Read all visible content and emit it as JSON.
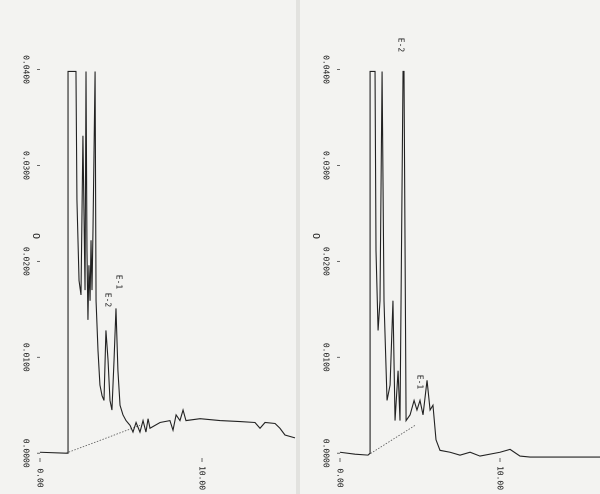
{
  "chart_data": [
    {
      "type": "line",
      "ylabel": "O",
      "annotations": [
        "E-2",
        "E-1"
      ],
      "color": "#222222",
      "xlim": [
        0,
        15.74
      ],
      "xticks": [
        {
          "value": 0,
          "label": "0.00"
        },
        {
          "value": 10,
          "label": "10.00"
        }
      ],
      "ylim": [
        -0.0005,
        0.046
      ],
      "yticks": [
        {
          "value": 0,
          "label": "0.0000"
        },
        {
          "value": 0.01,
          "label": "0.0100"
        },
        {
          "value": 0.02,
          "label": "0.0200"
        },
        {
          "value": 0.03,
          "label": "0.0300"
        },
        {
          "value": 0.04,
          "label": "0.0400"
        }
      ],
      "x": [
        0,
        1.6,
        1.73,
        1.73,
        2.22,
        2.28,
        2.41,
        2.53,
        2.65,
        2.78,
        2.84,
        2.9,
        2.96,
        3.02,
        3.09,
        3.15,
        3.21,
        3.27,
        3.4,
        3.46,
        3.58,
        3.7,
        3.83,
        3.95,
        4.07,
        4.2,
        4.32,
        4.44,
        4.57,
        4.69,
        4.81,
        4.94,
        5.12,
        5.31,
        5.56,
        5.74,
        5.93,
        6.17,
        6.36,
        6.54,
        6.67,
        6.79,
        7.41,
        8.02,
        8.21,
        8.4,
        8.64,
        8.83,
        9.01,
        9.88,
        11.11,
        12.35,
        13.27,
        13.58,
        13.89,
        14.51,
        14.81,
        15.12,
        15.74
      ],
      "values": [
        0.0001,
        0,
        0,
        0.0398,
        0.0398,
        0.0264,
        0.018,
        0.0165,
        0.0331,
        0.017,
        0.0398,
        0.0211,
        0.0139,
        0.0196,
        0.0159,
        0.0222,
        0.017,
        0.0232,
        0.0398,
        0.0159,
        0.0107,
        0.0071,
        0.006,
        0.0055,
        0.0128,
        0.0097,
        0.0055,
        0.0045,
        0.0097,
        0.0151,
        0.0086,
        0.005,
        0.004,
        0.0034,
        0.0029,
        0.0022,
        0.0032,
        0.0022,
        0.0034,
        0.0022,
        0.0036,
        0.0026,
        0.0032,
        0.0034,
        0.0024,
        0.004,
        0.0034,
        0.0045,
        0.0034,
        0.0036,
        0.0034,
        0.0033,
        0.0032,
        0.0026,
        0.0032,
        0.0031,
        0.0026,
        0.0019,
        0.0016
      ],
      "baseline": {
        "x": [
          1.6,
          6.17
        ],
        "values": [
          0,
          0.0029
        ]
      }
    },
    {
      "type": "line",
      "ylabel": "O",
      "annotations": [
        "E-2",
        "E-1"
      ],
      "color": "#222222",
      "xlim": [
        0,
        16.25
      ],
      "xticks": [
        {
          "value": 0,
          "label": "0.00"
        },
        {
          "value": 10,
          "label": "10.00"
        }
      ],
      "ylim": [
        -0.0005,
        0.046
      ],
      "yticks": [
        {
          "value": 0,
          "label": "0.0000"
        },
        {
          "value": 0.01,
          "label": "0.0100"
        },
        {
          "value": 0.02,
          "label": "0.0200"
        },
        {
          "value": 0.03,
          "label": "0.0300"
        },
        {
          "value": 0.04,
          "label": "0.0400"
        }
      ],
      "x": [
        0,
        0.94,
        1.75,
        1.88,
        1.88,
        2.19,
        2.25,
        2.38,
        2.5,
        2.63,
        2.75,
        2.94,
        3.13,
        3.31,
        3.44,
        3.63,
        3.75,
        3.94,
        4.0,
        4.13,
        4.38,
        4.63,
        4.81,
        5.0,
        5.19,
        5.44,
        5.63,
        5.81,
        6.0,
        6.25,
        6.88,
        7.5,
        8.13,
        8.75,
        10.0,
        10.63,
        11.25,
        11.88,
        16.25
      ],
      "values": [
        0.0001,
        -0.0001,
        -0.0002,
        0,
        0.0398,
        0.0398,
        0.0211,
        0.0128,
        0.0159,
        0.0398,
        0.0159,
        0.0055,
        0.0071,
        0.0159,
        0.0034,
        0.0086,
        0.0034,
        0.0398,
        0.0398,
        0.0034,
        0.004,
        0.0055,
        0.0045,
        0.0055,
        0.004,
        0.0076,
        0.0045,
        0.005,
        0.0014,
        0.0003,
        0.0001,
        -0.0002,
        0.0001,
        -0.0003,
        0.0001,
        0.0004,
        -0.0003,
        -0.0004,
        -0.0004
      ],
      "baseline": {
        "x": [
          1.75,
          4.69
        ],
        "values": [
          -0.0002,
          0.0029
        ]
      }
    }
  ]
}
